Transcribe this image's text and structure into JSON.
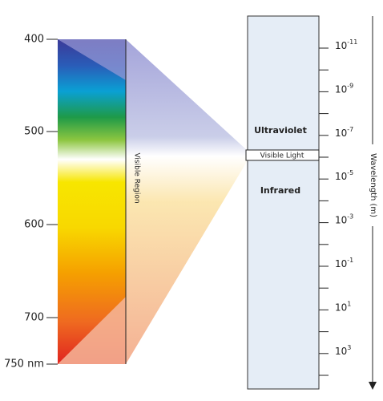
{
  "left_axis": {
    "ticks": [
      "400",
      "500",
      "600",
      "700",
      "750 nm"
    ]
  },
  "visible_region_label": "Visible Region",
  "bands": {
    "upper": "Ultraviolet",
    "middle": "Visible Light",
    "lower": "Infrared"
  },
  "right_axis": {
    "title": "Wavelength (m)",
    "ticks": [
      {
        "base": "10",
        "exponent": "-11"
      },
      {
        "base": "10",
        "exponent": "-9"
      },
      {
        "base": "10",
        "exponent": "-7"
      },
      {
        "base": "10",
        "exponent": "-5"
      },
      {
        "base": "10",
        "exponent": "-3"
      },
      {
        "base": "10",
        "exponent": "-1"
      },
      {
        "base": "10",
        "exponent": "1"
      },
      {
        "base": "10",
        "exponent": "3"
      }
    ]
  }
}
